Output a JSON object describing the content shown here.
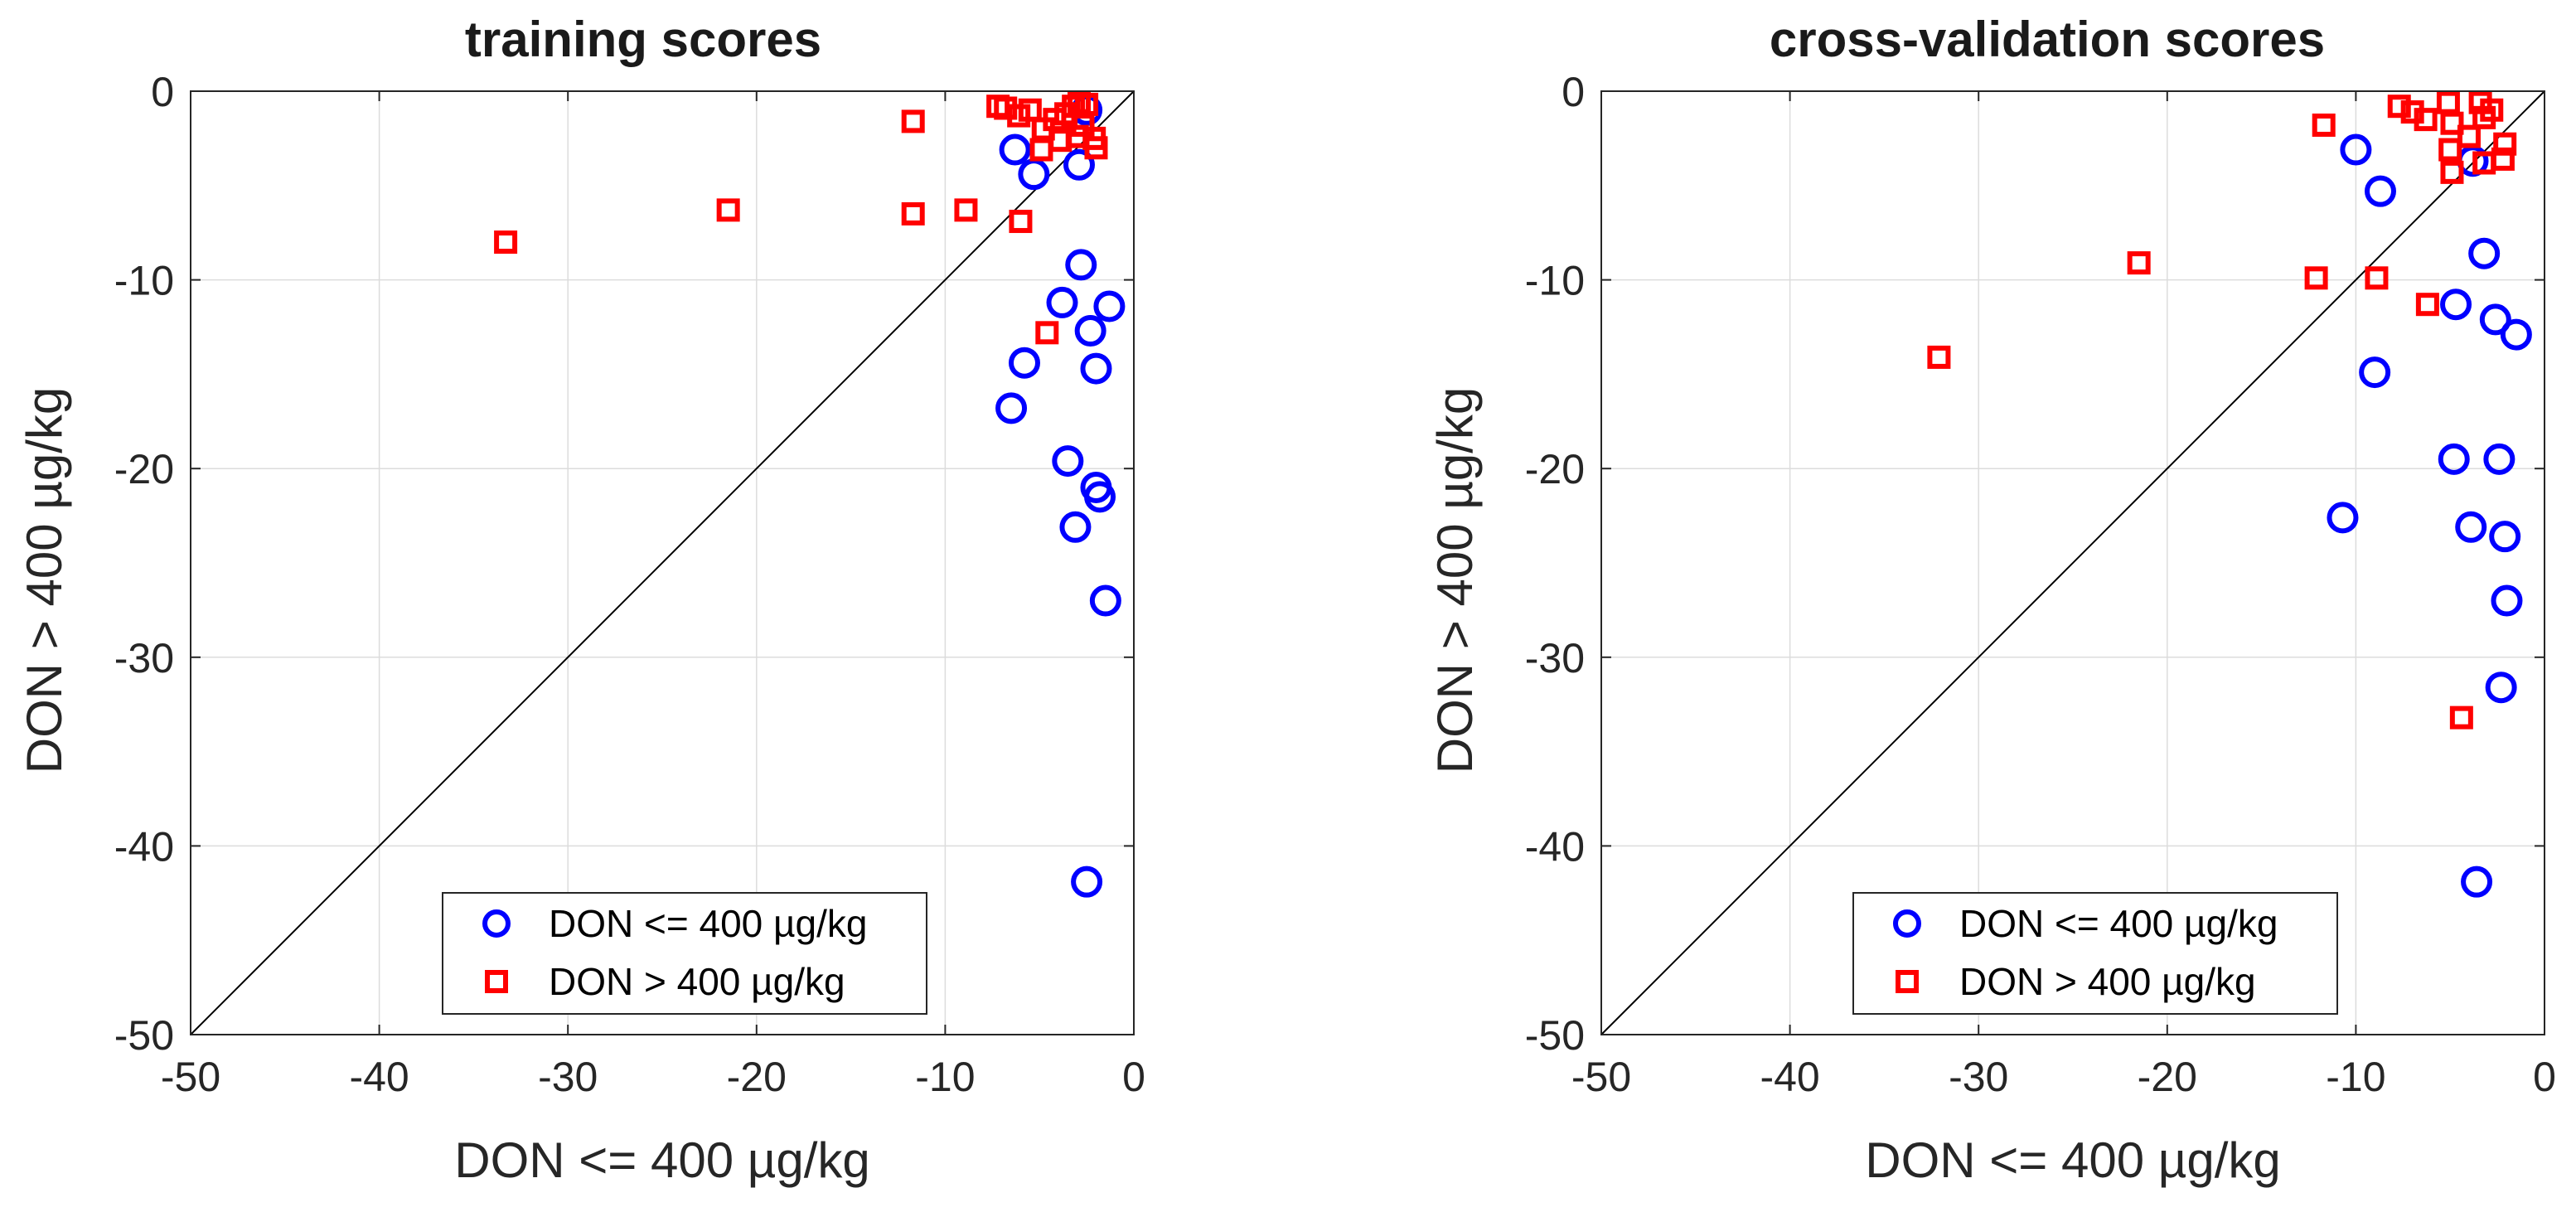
{
  "colors": {
    "class_low": "#0000ff",
    "class_high": "#ff0000",
    "grid": "#dcdcdc",
    "axis": "#262626"
  },
  "chart_data": [
    {
      "type": "scatter",
      "title": "training scores",
      "xlabel": "DON <= 400 µg/kg",
      "ylabel": "DON > 400 µg/kg",
      "xlim": [
        -50,
        0
      ],
      "ylim": [
        -50,
        0
      ],
      "xticks": [
        -50,
        -40,
        -30,
        -20,
        -10,
        0
      ],
      "yticks": [
        -50,
        -40,
        -30,
        -20,
        -10,
        0
      ],
      "grid": true,
      "reference_line": "y = x",
      "legend": {
        "placement": "bottom-center"
      },
      "series": [
        {
          "name": "DON <= 400 µg/kg",
          "marker": "circle",
          "color": "#0000ff",
          "points": [
            [
              -2.5,
              -1.0
            ],
            [
              -6.3,
              -3.1
            ],
            [
              -5.3,
              -4.4
            ],
            [
              -2.9,
              -3.9
            ],
            [
              -2.8,
              -9.2
            ],
            [
              -3.8,
              -11.2
            ],
            [
              -1.3,
              -11.4
            ],
            [
              -2.3,
              -12.7
            ],
            [
              -5.8,
              -14.4
            ],
            [
              -2.0,
              -14.7
            ],
            [
              -6.5,
              -16.8
            ],
            [
              -3.5,
              -19.6
            ],
            [
              -2.0,
              -21.0
            ],
            [
              -1.8,
              -21.5
            ],
            [
              -3.1,
              -23.1
            ],
            [
              -1.5,
              -27.0
            ],
            [
              -2.5,
              -41.9
            ]
          ]
        },
        {
          "name": "DON > 400 µg/kg",
          "marker": "square",
          "color": "#ff0000",
          "points": [
            [
              -7.2,
              -0.8
            ],
            [
              -6.8,
              -0.9
            ],
            [
              -5.5,
              -1.0
            ],
            [
              -3.2,
              -0.8
            ],
            [
              -2.9,
              -0.6
            ],
            [
              -2.5,
              -0.7
            ],
            [
              -3.6,
              -1.2
            ],
            [
              -4.2,
              -1.5
            ],
            [
              -6.1,
              -1.3
            ],
            [
              -2.7,
              -1.8
            ],
            [
              -4.8,
              -2.0
            ],
            [
              -3.0,
              -2.4
            ],
            [
              -2.1,
              -2.5
            ],
            [
              -3.9,
              -2.6
            ],
            [
              -2.0,
              -3.0
            ],
            [
              -4.9,
              -3.1
            ],
            [
              -11.7,
              -1.6
            ],
            [
              -33.3,
              -8.0
            ],
            [
              -21.5,
              -6.3
            ],
            [
              -11.7,
              -6.5
            ],
            [
              -8.9,
              -6.3
            ],
            [
              -6.0,
              -6.9
            ],
            [
              -4.6,
              -12.8
            ]
          ]
        }
      ]
    },
    {
      "type": "scatter",
      "title": "cross-validation scores",
      "xlabel": "DON <= 400 µg/kg",
      "ylabel": "DON > 400 µg/kg",
      "xlim": [
        -50,
        0
      ],
      "ylim": [
        -50,
        0
      ],
      "xticks": [
        -50,
        -40,
        -30,
        -20,
        -10,
        0
      ],
      "yticks": [
        -50,
        -40,
        -30,
        -20,
        -10,
        0
      ],
      "grid": true,
      "reference_line": "y = x",
      "legend": {
        "placement": "bottom-center"
      },
      "series": [
        {
          "name": "DON <= 400 µg/kg",
          "marker": "circle",
          "color": "#0000ff",
          "points": [
            [
              -10.0,
              -3.1
            ],
            [
              -8.7,
              -5.3
            ],
            [
              -3.8,
              -3.7
            ],
            [
              -3.2,
              -8.6
            ],
            [
              -4.7,
              -11.3
            ],
            [
              -2.6,
              -12.1
            ],
            [
              -1.5,
              -12.9
            ],
            [
              -9.0,
              -14.9
            ],
            [
              -4.8,
              -19.5
            ],
            [
              -2.4,
              -19.5
            ],
            [
              -10.7,
              -22.6
            ],
            [
              -3.9,
              -23.1
            ],
            [
              -2.1,
              -23.6
            ],
            [
              -2.0,
              -27.0
            ],
            [
              -2.3,
              -31.6
            ],
            [
              -3.6,
              -41.9
            ]
          ]
        },
        {
          "name": "DON > 400 µg/kg",
          "marker": "square",
          "color": "#ff0000",
          "points": [
            [
              -7.7,
              -0.8
            ],
            [
              -7.0,
              -1.1
            ],
            [
              -6.3,
              -1.5
            ],
            [
              -5.1,
              -0.6
            ],
            [
              -3.4,
              -0.6
            ],
            [
              -2.8,
              -1.0
            ],
            [
              -3.2,
              -1.4
            ],
            [
              -4.9,
              -1.7
            ],
            [
              -4.0,
              -2.4
            ],
            [
              -5.0,
              -3.1
            ],
            [
              -2.1,
              -2.8
            ],
            [
              -2.2,
              -3.6
            ],
            [
              -3.2,
              -3.8
            ],
            [
              -4.9,
              -4.3
            ],
            [
              -11.7,
              -1.8
            ],
            [
              -32.1,
              -14.1
            ],
            [
              -21.5,
              -9.1
            ],
            [
              -12.1,
              -9.9
            ],
            [
              -8.9,
              -9.9
            ],
            [
              -6.2,
              -11.3
            ],
            [
              -4.4,
              -33.2
            ]
          ]
        }
      ]
    }
  ]
}
